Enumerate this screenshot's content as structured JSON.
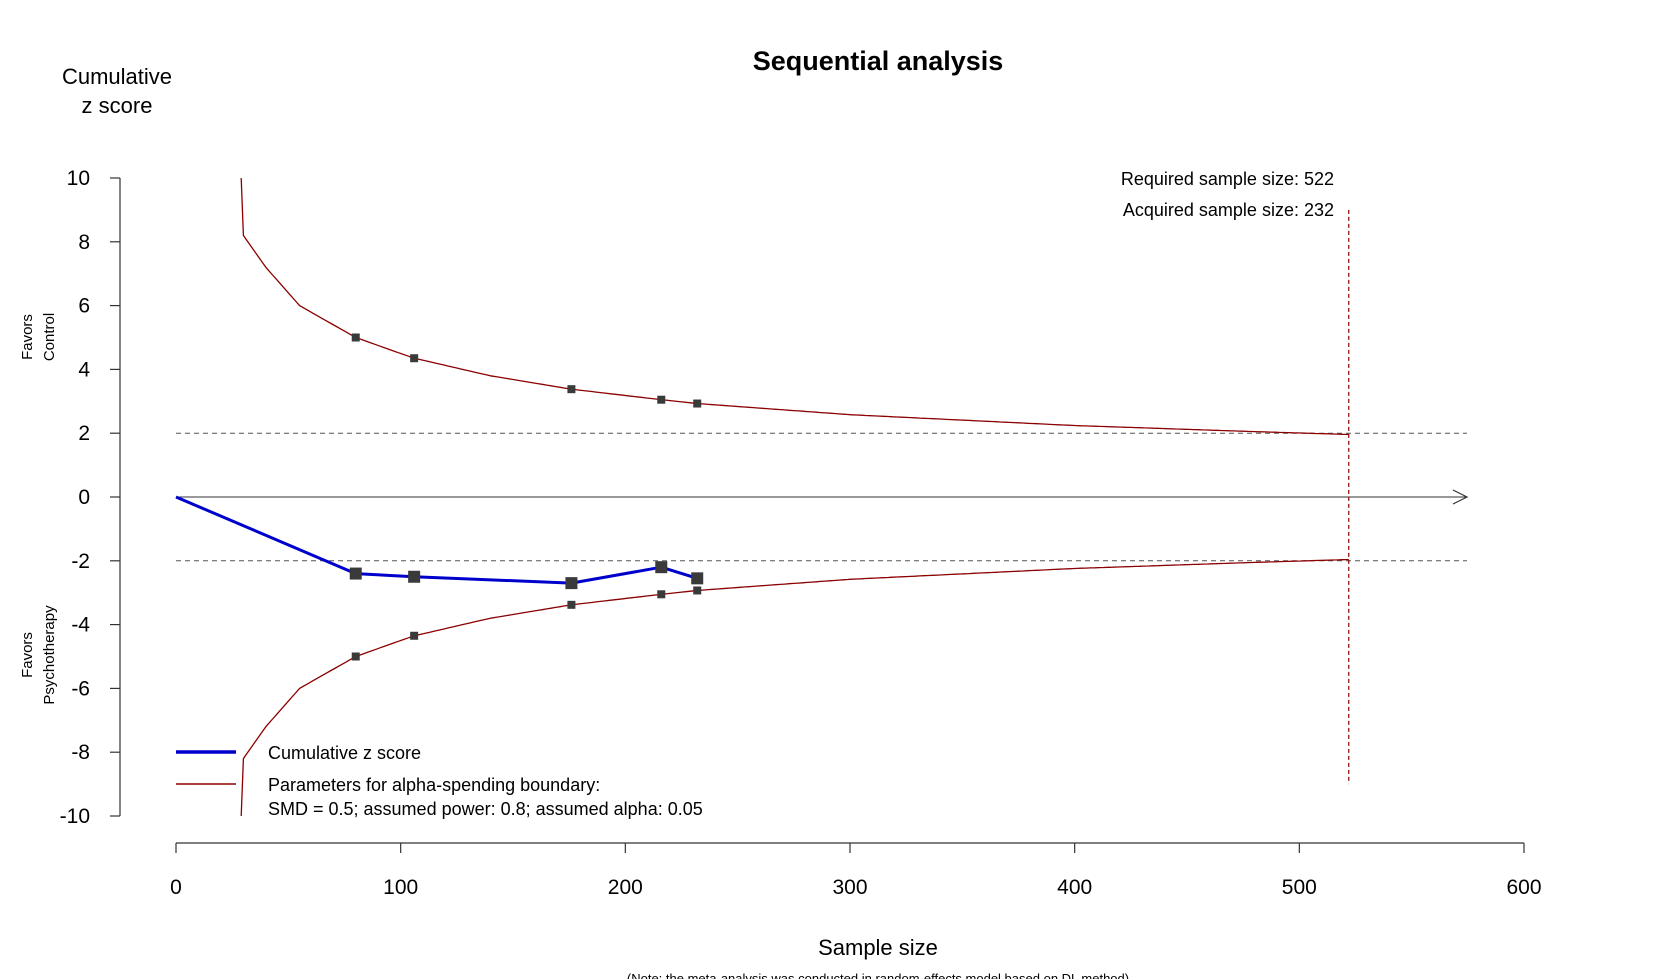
{
  "chart_data": {
    "type": "line",
    "title": "Sequential analysis",
    "ylabel_lines": [
      "Cumulative",
      "z score"
    ],
    "xlabel": "Sample size",
    "note": "(Note: the meta-analysis was conducted in random-effects model based on DL method)",
    "side_label_top": [
      "Favors",
      "Control"
    ],
    "side_label_bottom": [
      "Favors",
      "Psychotherapy"
    ],
    "xlim": [
      0,
      600
    ],
    "ylim": [
      -10,
      10
    ],
    "x_ticks": [
      0,
      100,
      200,
      300,
      400,
      500,
      600
    ],
    "y_ticks": [
      10,
      8,
      6,
      4,
      2,
      0,
      -2,
      -4,
      -6,
      -8,
      -10
    ],
    "reference_lines": {
      "y": [
        2,
        -2
      ],
      "style": "dashed"
    },
    "required_sample_size_line": {
      "x": 522,
      "y_range": [
        -9,
        9
      ]
    },
    "annotations": [
      "Required sample size: 522",
      "Acquired sample size: 232"
    ],
    "series": [
      {
        "name": "Cumulative z score",
        "color": "#0000cc",
        "points": [
          {
            "x": 0,
            "y": 0
          },
          {
            "x": 80,
            "y": -2.4
          },
          {
            "x": 106,
            "y": -2.5
          },
          {
            "x": 176,
            "y": -2.7
          },
          {
            "x": 216,
            "y": -2.2
          },
          {
            "x": 232,
            "y": -2.55
          }
        ]
      },
      {
        "name": "Parameters for alpha-spending boundary:",
        "name_line2": "SMD = 0.5; assumed power: 0.8; assumed alpha: 0.05",
        "color": "#8b0000",
        "boundary": {
          "x_start": 29,
          "x_end": 522,
          "upper_knots": [
            [
              29,
              10
            ],
            [
              30,
              8.2
            ],
            [
              40,
              7.2
            ],
            [
              55,
              6.0
            ],
            [
              80,
              5.0
            ],
            [
              106,
              4.35
            ],
            [
              140,
              3.8
            ],
            [
              176,
              3.38
            ],
            [
              216,
              3.05
            ],
            [
              232,
              2.93
            ],
            [
              300,
              2.58
            ],
            [
              400,
              2.24
            ],
            [
              480,
              2.05
            ],
            [
              522,
              1.96
            ]
          ],
          "markers": [
            {
              "x": 80,
              "y": 5.0
            },
            {
              "x": 106,
              "y": 4.35
            },
            {
              "x": 176,
              "y": 3.38
            },
            {
              "x": 216,
              "y": 3.05
            },
            {
              "x": 232,
              "y": 2.93
            }
          ]
        }
      }
    ],
    "axis_line_color": "#333333",
    "grid": false,
    "legend_position": "bottom-left"
  }
}
